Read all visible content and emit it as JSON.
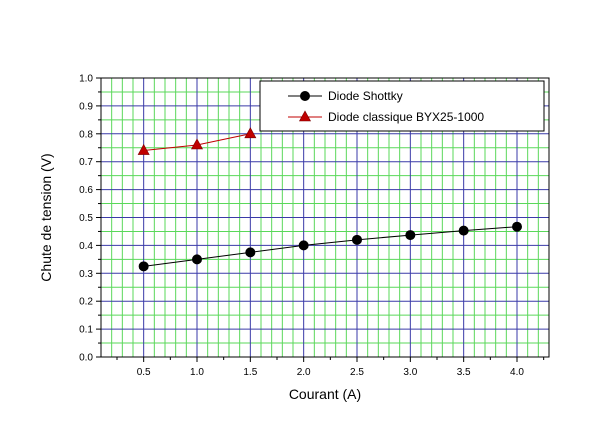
{
  "chart_data": {
    "type": "line",
    "title": "",
    "xlabel": "Courant (A)",
    "ylabel": "Chute de tension (V)",
    "xlim": [
      0.1,
      4.3
    ],
    "ylim": [
      0.0,
      1.0
    ],
    "xticks": [
      0.5,
      1.0,
      1.5,
      2.0,
      2.5,
      3.0,
      3.5,
      4.0
    ],
    "xtick_labels": [
      "0.5",
      "1.0",
      "1.5",
      "2.0",
      "2.5",
      "3.0",
      "3.5",
      "4.0"
    ],
    "yticks": [
      0.0,
      0.1,
      0.2,
      0.3,
      0.4,
      0.5,
      0.6,
      0.7,
      0.8,
      0.9,
      1.0
    ],
    "ytick_labels": [
      "0.0",
      "0.1",
      "0.2",
      "0.3",
      "0.4",
      "0.5",
      "0.6",
      "0.7",
      "0.8",
      "0.9",
      "1.0"
    ],
    "grid": true,
    "legend_position": "top-right",
    "series": [
      {
        "name": "Diode Shottky",
        "marker": "circle",
        "color": "#000000",
        "x": [
          0.5,
          1.0,
          1.5,
          2.0,
          2.5,
          3.0,
          3.5,
          4.0
        ],
        "y": [
          0.325,
          0.35,
          0.375,
          0.4,
          0.42,
          0.437,
          0.453,
          0.467
        ]
      },
      {
        "name": "Diode classique BYX25-1000",
        "marker": "triangle",
        "color": "#c00000",
        "x": [
          0.5,
          1.0,
          1.5
        ],
        "y": [
          0.74,
          0.76,
          0.8
        ]
      }
    ],
    "colors": {
      "major_grid": "#3a3aa8",
      "minor_grid": "#5ad85a",
      "frame": "#000000"
    }
  }
}
